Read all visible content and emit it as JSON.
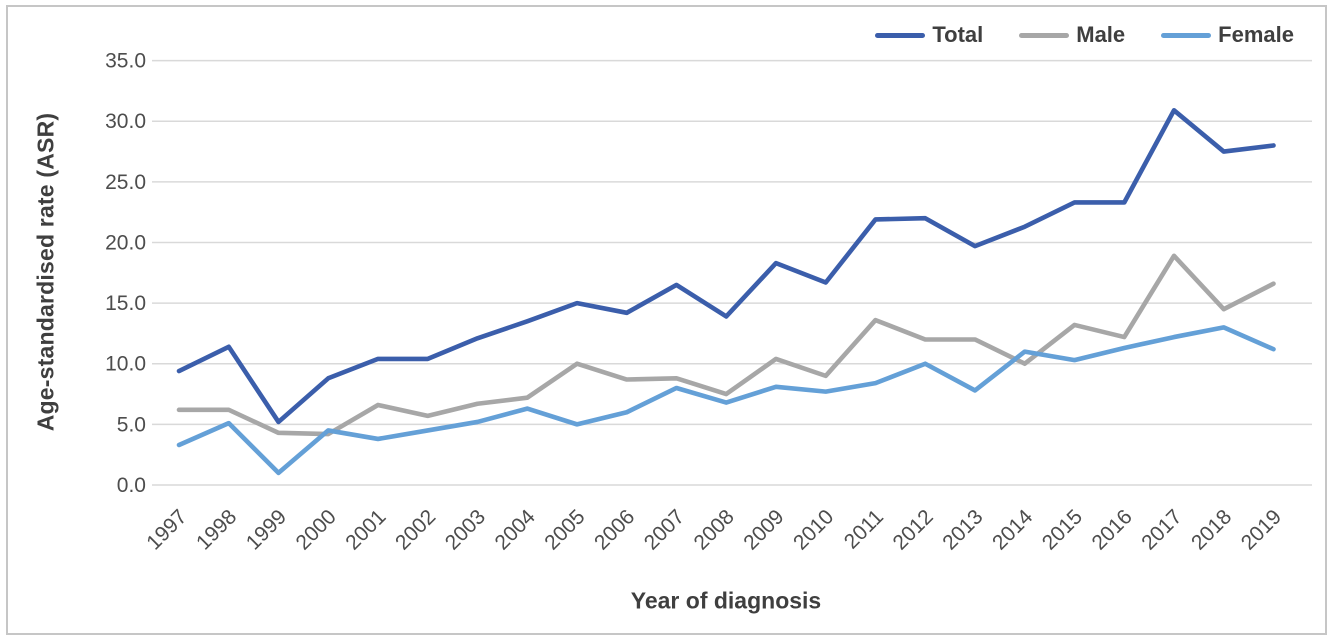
{
  "figure": {
    "y_axis_title": "Age-standardised rate (ASR)",
    "x_axis_title": "Year of diagnosis"
  },
  "chart_data": {
    "type": "line",
    "title": "",
    "xlabel": "Year of diagnosis",
    "ylabel": "Age-standardised rate (ASR)",
    "x": [
      1997,
      1998,
      1999,
      2000,
      2001,
      2002,
      2003,
      2004,
      2005,
      2006,
      2007,
      2008,
      2009,
      2010,
      2011,
      2012,
      2013,
      2014,
      2015,
      2016,
      2017,
      2018,
      2019
    ],
    "series": [
      {
        "name": "Total",
        "color": "#3b5eab",
        "values": [
          9.4,
          11.4,
          5.2,
          8.8,
          10.4,
          10.4,
          12.1,
          13.5,
          15.0,
          14.2,
          16.5,
          13.9,
          18.3,
          16.7,
          21.9,
          22.0,
          19.7,
          21.3,
          23.3,
          23.3,
          30.9,
          27.5,
          28.0
        ]
      },
      {
        "name": "Male",
        "color": "#a7a7a7",
        "values": [
          6.2,
          6.2,
          4.3,
          4.2,
          6.6,
          5.7,
          6.7,
          7.2,
          10.0,
          8.7,
          8.8,
          7.5,
          10.4,
          9.0,
          13.6,
          12.0,
          12.0,
          10.0,
          13.2,
          12.2,
          18.9,
          14.5,
          16.6
        ]
      },
      {
        "name": "Female",
        "color": "#64a0d7",
        "values": [
          3.3,
          5.1,
          1.0,
          4.5,
          3.8,
          4.5,
          5.2,
          6.3,
          5.0,
          6.0,
          8.0,
          6.8,
          8.1,
          7.7,
          8.4,
          10.0,
          7.8,
          11.0,
          10.3,
          11.3,
          12.2,
          13.0,
          11.2
        ]
      }
    ],
    "ylim": [
      0,
      35
    ],
    "ytick_labels": [
      "0.0",
      "5.0",
      "10.0",
      "15.0",
      "20.0",
      "25.0",
      "30.0",
      "35.0"
    ],
    "ytick_step": 5,
    "grid": "horizontal-only",
    "legend_position": "top-right",
    "colors": {
      "gridline": "#d9d9d9",
      "tick_text": "#4d4d4d",
      "title_text": "#3f3f3f",
      "background": "#ffffff",
      "frame_border": "#c6c6c6"
    }
  }
}
